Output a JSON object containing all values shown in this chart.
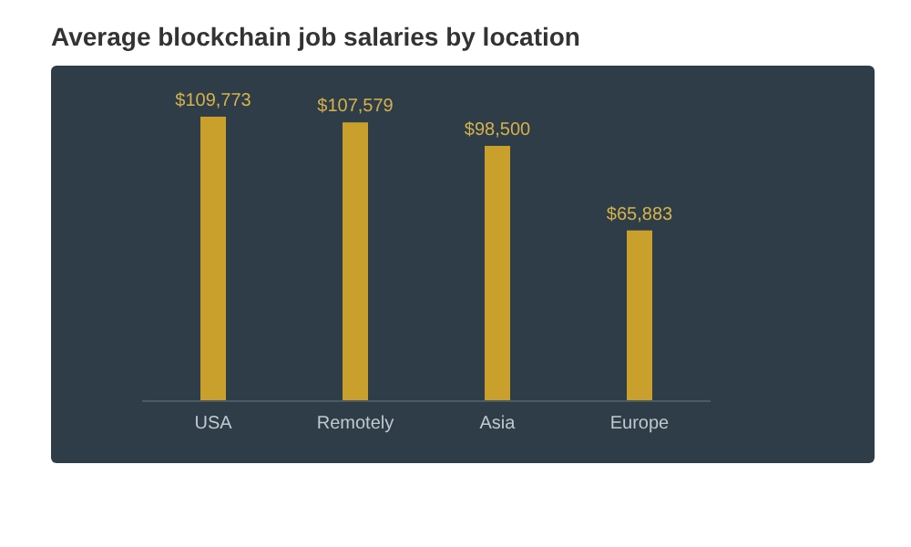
{
  "chart_data": {
    "type": "bar",
    "title": "Average blockchain job salaries by location",
    "categories": [
      "USA",
      "Remotely",
      "Asia",
      "Europe"
    ],
    "values": [
      109773,
      107579,
      98500,
      65883
    ],
    "value_labels": [
      "$109,773",
      "$107,579",
      "$98,500",
      "$65,883"
    ],
    "color": "#c9a02c",
    "grid": false
  }
}
